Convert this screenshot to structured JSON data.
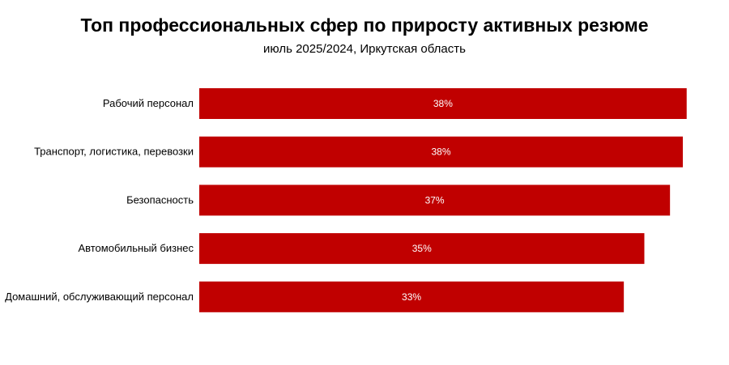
{
  "chart_data": {
    "type": "bar",
    "orientation": "horizontal",
    "title": "Топ профессиональных сфер по приросту активных резюме",
    "subtitle": "июль 2025/2024, Иркутская область",
    "categories": [
      "Рабочий персонал",
      "Транспорт, логистика, перевозки",
      "Безопасность",
      "Автомобильный бизнес",
      "Домашний, обслуживающий персонал"
    ],
    "values": [
      38.0,
      37.7,
      36.7,
      34.7,
      33.1
    ],
    "labels": [
      "38%",
      "38%",
      "37%",
      "35%",
      "33%"
    ],
    "xlabel": "",
    "ylabel": "",
    "xlim": [
      0,
      41.3
    ],
    "grid": false,
    "color": "#c00000"
  }
}
